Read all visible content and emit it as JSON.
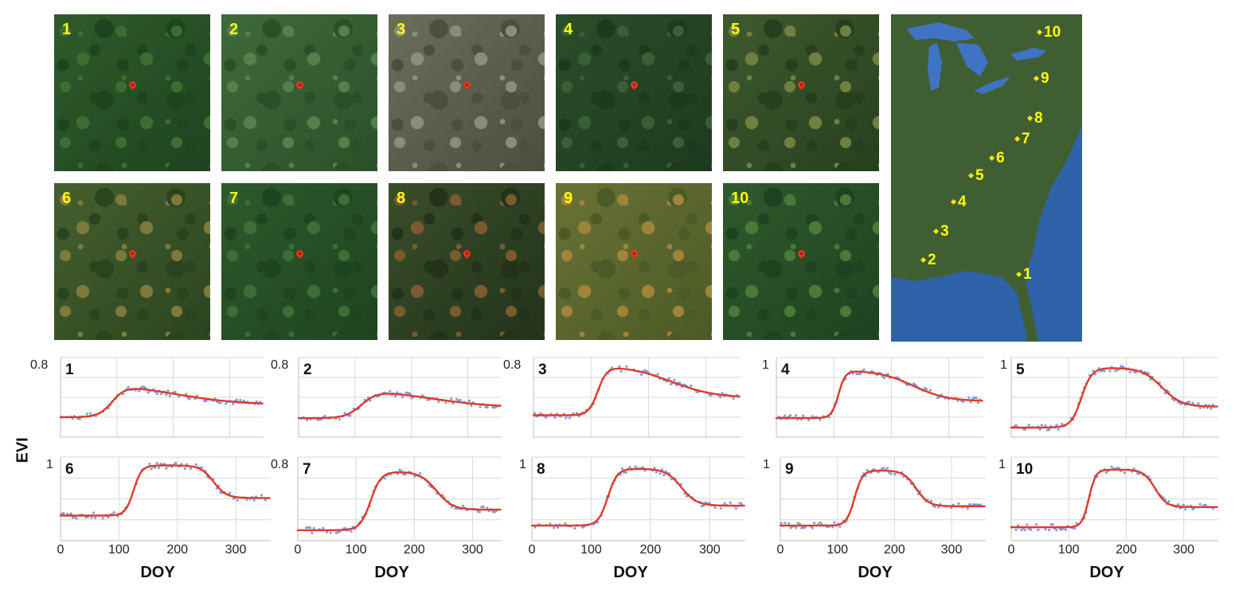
{
  "figure": {
    "y_axis_title": "EVI",
    "x_axis_title": "DOY",
    "colors": {
      "fit_line": "#e03a2a",
      "points": "#6b8fdc",
      "panel_label": "#ffff00",
      "pin": "#e8321e",
      "gridline": "#d9d9d9"
    }
  },
  "photos": [
    {
      "label": "1",
      "tone": [
        "#2f5b2a",
        "#1e4420",
        "#3c6e33"
      ]
    },
    {
      "label": "2",
      "tone": [
        "#3f6a3a",
        "#2b5029",
        "#55804c"
      ]
    },
    {
      "label": "3",
      "tone": [
        "#6b6e5a",
        "#4a4f3f",
        "#8c8c7a"
      ]
    },
    {
      "label": "4",
      "tone": [
        "#2b4e2a",
        "#1d3a1e",
        "#3a5f36"
      ]
    },
    {
      "label": "5",
      "tone": [
        "#3e5a2e",
        "#26401f",
        "#6f8040"
      ]
    },
    {
      "label": "6",
      "tone": [
        "#45602f",
        "#2b4420",
        "#7d7a3c"
      ]
    },
    {
      "label": "7",
      "tone": [
        "#2d5a2c",
        "#1e4420",
        "#3d6e38"
      ]
    },
    {
      "label": "8",
      "tone": [
        "#3a4e2a",
        "#22331a",
        "#7a5a2e"
      ]
    },
    {
      "label": "9",
      "tone": [
        "#6a7236",
        "#4b5a26",
        "#a0843a"
      ]
    },
    {
      "label": "10",
      "tone": [
        "#2f5a2c",
        "#1f4220",
        "#4a7a3a"
      ]
    }
  ],
  "map": {
    "colors": {
      "land": "#3f5f33",
      "land_dark": "#2c4a2a",
      "water": "#2f62a8",
      "lake": "#3f74c4"
    },
    "sites": [
      "1",
      "2",
      "3",
      "4",
      "5",
      "6",
      "7",
      "8",
      "9",
      "10"
    ]
  },
  "chart_data": [
    {
      "type": "scatter",
      "panel": "1",
      "ytick_label": "0.8",
      "ylim": [
        0,
        0.8
      ],
      "xlim": [
        0,
        360
      ],
      "xticks": [],
      "fit": {
        "base": 0.2,
        "amp": 0.35,
        "green_up_doy": 92,
        "green_up_rate": 12,
        "senescence_doy": 200,
        "senescence_rate": 60,
        "peak": 0.55
      }
    },
    {
      "type": "scatter",
      "panel": "2",
      "ytick_label": "0.8",
      "ylim": [
        0,
        0.8
      ],
      "xlim": [
        0,
        360
      ],
      "xticks": [],
      "fit": {
        "base": 0.19,
        "amp": 0.3,
        "green_up_doy": 112,
        "green_up_rate": 14,
        "senescence_doy": 230,
        "senescence_rate": 60,
        "peak": 0.5
      }
    },
    {
      "type": "scatter",
      "panel": "3",
      "ytick_label": "0.8",
      "ylim": [
        0,
        0.8
      ],
      "xlim": [
        0,
        360
      ],
      "xticks": [],
      "fit": {
        "base": 0.22,
        "amp": 0.5,
        "green_up_doy": 112,
        "green_up_rate": 8,
        "senescence_doy": 240,
        "senescence_rate": 38,
        "peak": 0.72
      }
    },
    {
      "type": "scatter",
      "panel": "4",
      "ytick_label": "1",
      "ylim": [
        0,
        1
      ],
      "xlim": [
        0,
        360
      ],
      "xticks": [],
      "fit": {
        "base": 0.24,
        "amp": 0.6,
        "green_up_doy": 108,
        "green_up_rate": 6,
        "senescence_doy": 238,
        "senescence_rate": 30,
        "peak": 0.84
      }
    },
    {
      "type": "scatter",
      "panel": "5",
      "ytick_label": "1",
      "ylim": [
        0,
        1
      ],
      "xlim": [
        0,
        360
      ],
      "xticks": [],
      "fit": {
        "base": 0.12,
        "amp": 0.75,
        "green_up_doy": 122,
        "green_up_rate": 9,
        "senescence_doy": 262,
        "senescence_rate": 17,
        "peak": 0.87
      }
    },
    {
      "type": "scatter",
      "panel": "6",
      "ytick_label": "1",
      "ylim": [
        0,
        1
      ],
      "xlim": [
        0,
        360
      ],
      "xticks": [
        0,
        100,
        200,
        300
      ],
      "fit": {
        "base": 0.3,
        "amp": 0.6,
        "green_up_doy": 125,
        "green_up_rate": 7,
        "senescence_doy": 262,
        "senescence_rate": 11,
        "peak": 0.9
      }
    },
    {
      "type": "scatter",
      "panel": "7",
      "ytick_label": "0.8",
      "ylim": [
        0,
        0.8
      ],
      "xlim": [
        0,
        350
      ],
      "xticks": [
        0,
        100,
        200,
        300
      ],
      "fit": {
        "base": 0.1,
        "amp": 0.56,
        "green_up_doy": 125,
        "green_up_rate": 9,
        "senescence_doy": 238,
        "senescence_rate": 14,
        "peak": 0.66
      }
    },
    {
      "type": "scatter",
      "panel": "8",
      "ytick_label": "1",
      "ylim": [
        0,
        1
      ],
      "xlim": [
        0,
        360
      ],
      "xticks": [
        0,
        100,
        200,
        300
      ],
      "fit": {
        "base": 0.18,
        "amp": 0.68,
        "green_up_doy": 128,
        "green_up_rate": 8,
        "senescence_doy": 252,
        "senescence_rate": 13,
        "peak": 0.86
      }
    },
    {
      "type": "scatter",
      "panel": "9",
      "ytick_label": "1",
      "ylim": [
        0,
        1
      ],
      "xlim": [
        0,
        360
      ],
      "xticks": [
        0,
        100,
        200,
        300
      ],
      "fit": {
        "base": 0.18,
        "amp": 0.66,
        "green_up_doy": 130,
        "green_up_rate": 7,
        "senescence_doy": 238,
        "senescence_rate": 11,
        "peak": 0.84
      }
    },
    {
      "type": "scatter",
      "panel": "10",
      "ytick_label": "1",
      "ylim": [
        0,
        1
      ],
      "xlim": [
        0,
        360
      ],
      "xticks": [
        0,
        100,
        200,
        300
      ],
      "fit": {
        "base": 0.16,
        "amp": 0.69,
        "green_up_doy": 135,
        "green_up_rate": 6,
        "senescence_doy": 250,
        "senescence_rate": 10,
        "peak": 0.85
      }
    }
  ]
}
